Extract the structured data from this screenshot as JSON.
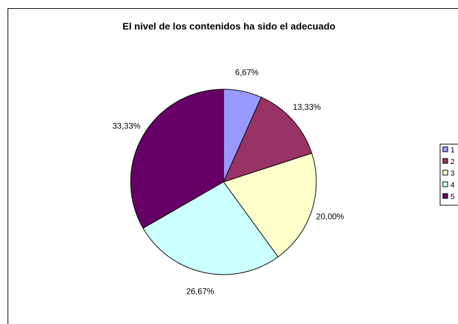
{
  "chart_data": {
    "type": "pie",
    "title": "El nivel de los contenidos ha sido el adecuado",
    "categories": [
      "1",
      "2",
      "3",
      "4",
      "5"
    ],
    "values": [
      6.67,
      13.33,
      20.0,
      26.67,
      33.33
    ],
    "data_labels": [
      "6,67%",
      "13,33%",
      "20,00%",
      "26,67%",
      "33,33%"
    ],
    "colors": [
      "#9999FF",
      "#993366",
      "#FFFFCC",
      "#CCFFFF",
      "#660066"
    ],
    "legend": "right"
  }
}
